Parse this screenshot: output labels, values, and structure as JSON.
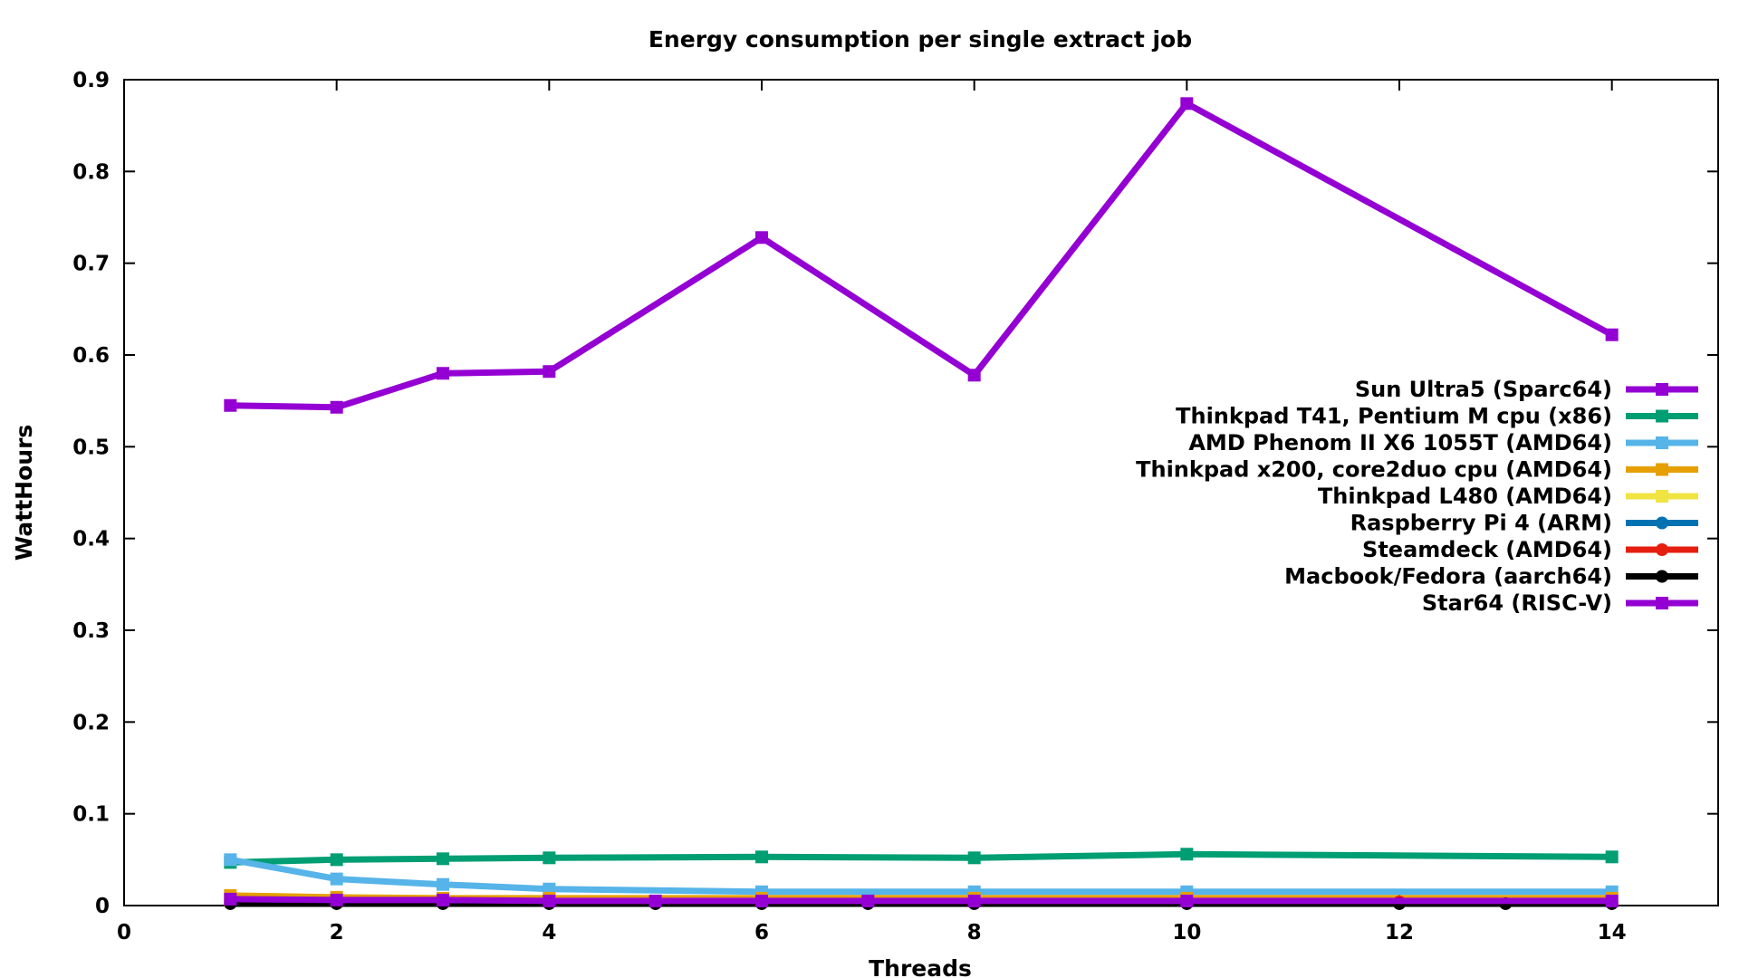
{
  "chart_data": {
    "type": "line",
    "title": "Energy consumption per single extract job",
    "xlabel": "Threads",
    "ylabel": "WattHours",
    "xlim": [
      0,
      15
    ],
    "ylim": [
      0,
      0.9
    ],
    "xticks": [
      0,
      2,
      4,
      6,
      8,
      10,
      12,
      14
    ],
    "yticks": [
      0,
      0.1,
      0.2,
      0.3,
      0.4,
      0.5,
      0.6,
      0.7,
      0.8,
      0.9
    ],
    "grid": false,
    "legend_position": "right",
    "series": [
      {
        "name": "Sun Ultra5 (Sparc64)",
        "color": "#9400d3",
        "marker": "square",
        "x": [
          1,
          2,
          3,
          4,
          6,
          8,
          10,
          14
        ],
        "y": [
          0.545,
          0.543,
          0.58,
          0.582,
          0.728,
          0.578,
          0.874,
          0.622
        ]
      },
      {
        "name": "Thinkpad T41, Pentium M cpu (x86)",
        "color": "#009e73",
        "marker": "square",
        "x": [
          1,
          2,
          3,
          4,
          6,
          8,
          10,
          14
        ],
        "y": [
          0.047,
          0.05,
          0.051,
          0.052,
          0.053,
          0.052,
          0.056,
          0.053
        ]
      },
      {
        "name": "AMD Phenom II X6 1055T (AMD64)",
        "color": "#56b4e9",
        "marker": "square",
        "x": [
          1,
          2,
          3,
          4,
          6,
          8,
          10,
          14
        ],
        "y": [
          0.05,
          0.029,
          0.023,
          0.018,
          0.015,
          0.015,
          0.015,
          0.015
        ]
      },
      {
        "name": "Thinkpad x200, core2duo cpu (AMD64)",
        "color": "#e69f00",
        "marker": "square",
        "x": [
          1,
          2,
          3,
          4,
          6,
          8,
          10,
          14
        ],
        "y": [
          0.011,
          0.009,
          0.008,
          0.008,
          0.008,
          0.008,
          0.008,
          0.008
        ]
      },
      {
        "name": "Thinkpad L480 (AMD64)",
        "color": "#f0e442",
        "marker": "square",
        "x": [
          1,
          2,
          3,
          4,
          6,
          8,
          10,
          14
        ],
        "y": [
          0.006,
          0.005,
          0.005,
          0.005,
          0.005,
          0.005,
          0.005,
          0.005
        ]
      },
      {
        "name": "Raspberry Pi 4 (ARM)",
        "color": "#0072b2",
        "marker": "circle",
        "x": [
          1,
          2,
          3,
          4
        ],
        "y": [
          0.005,
          0.004,
          0.004,
          0.004
        ]
      },
      {
        "name": "Steamdeck (AMD64)",
        "color": "#e51e10",
        "marker": "circle",
        "x": [
          1,
          2,
          3,
          4,
          5,
          6,
          7,
          8,
          10,
          12,
          14
        ],
        "y": [
          0.004,
          0.004,
          0.004,
          0.004,
          0.004,
          0.004,
          0.004,
          0.004,
          0.004,
          0.004,
          0.004
        ]
      },
      {
        "name": "Macbook/Fedora (aarch64)",
        "color": "#000000",
        "marker": "circle",
        "x": [
          1,
          2,
          3,
          4,
          5,
          6,
          7,
          8,
          10,
          12,
          13,
          14
        ],
        "y": [
          0.002,
          0.002,
          0.002,
          0.002,
          0.002,
          0.002,
          0.002,
          0.002,
          0.002,
          0.002,
          0.002,
          0.002
        ]
      },
      {
        "name": "Star64 (RISC-V)",
        "color": "#9400d3",
        "marker": "square",
        "x": [
          1,
          2,
          3,
          4,
          5,
          6,
          7,
          8,
          10,
          14
        ],
        "y": [
          0.007,
          0.006,
          0.006,
          0.005,
          0.005,
          0.005,
          0.005,
          0.005,
          0.005,
          0.005
        ]
      }
    ]
  }
}
